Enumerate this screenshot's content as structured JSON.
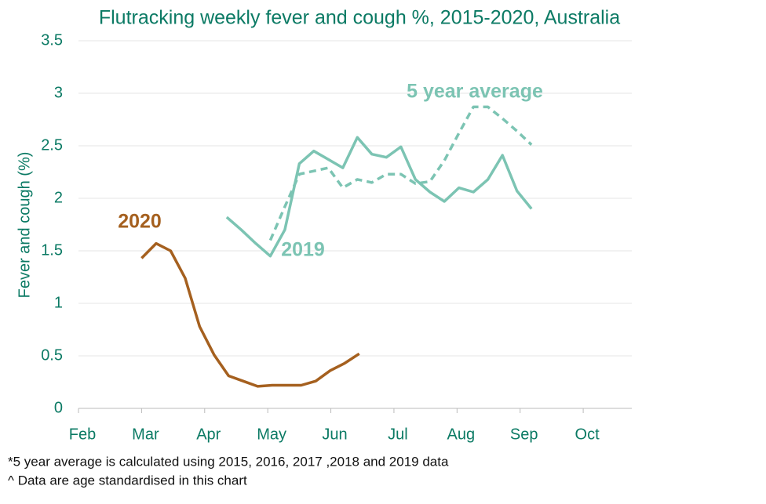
{
  "chart_data": {
    "type": "line",
    "title": "Flutracking weekly fever and cough %, 2015-2020, Australia",
    "y_label": "Fever and cough (%)",
    "xlim": [
      0,
      8.77
    ],
    "xticks": [
      {
        "value": 0,
        "label": "Feb"
      },
      {
        "value": 1,
        "label": "Mar"
      },
      {
        "value": 2,
        "label": "Apr"
      },
      {
        "value": 3,
        "label": "May"
      },
      {
        "value": 4,
        "label": "Jun"
      },
      {
        "value": 5,
        "label": "Jul"
      },
      {
        "value": 6,
        "label": "Aug"
      },
      {
        "value": 7,
        "label": "Sep"
      },
      {
        "value": 8,
        "label": "Oct"
      }
    ],
    "ylim": [
      0,
      3.5
    ],
    "yticks": [
      0,
      0.5,
      1,
      1.5,
      2,
      2.5,
      3,
      3.5
    ],
    "grid": true,
    "series": [
      {
        "name": "2020",
        "color": "#a5601f",
        "dash": false,
        "x": [
          1.0,
          1.23,
          1.46,
          1.69,
          1.92,
          2.15,
          2.38,
          2.61,
          2.84,
          3.07,
          3.3,
          3.53,
          3.76,
          3.99,
          4.22,
          4.45
        ],
        "values": [
          1.43,
          1.57,
          1.5,
          1.24,
          0.78,
          0.51,
          0.31,
          0.26,
          0.21,
          0.22,
          0.22,
          0.22,
          0.26,
          0.36,
          0.43,
          0.52
        ]
      },
      {
        "name": "2019",
        "color": "#7cc4b3",
        "dash": false,
        "x": [
          2.35,
          2.58,
          2.81,
          3.04,
          3.27,
          3.5,
          3.73,
          3.96,
          4.19,
          4.42,
          4.65,
          4.88,
          5.11,
          5.34,
          5.57,
          5.8,
          6.03,
          6.26,
          6.49,
          6.72,
          6.95,
          7.18
        ],
        "values": [
          1.82,
          1.7,
          1.57,
          1.45,
          1.7,
          2.33,
          2.45,
          2.37,
          2.29,
          2.58,
          2.42,
          2.39,
          2.49,
          2.18,
          2.06,
          1.97,
          2.1,
          2.06,
          2.18,
          2.41,
          2.07,
          1.9
        ]
      },
      {
        "name": "5 year average",
        "color": "#7cc4b3",
        "dash": true,
        "x": [
          3.04,
          3.27,
          3.5,
          3.73,
          3.96,
          4.19,
          4.42,
          4.65,
          4.88,
          5.11,
          5.34,
          5.57,
          5.8,
          6.03,
          6.26,
          6.49,
          6.72,
          6.95,
          7.18
        ],
        "values": [
          1.6,
          1.92,
          2.23,
          2.26,
          2.29,
          2.1,
          2.18,
          2.15,
          2.23,
          2.23,
          2.14,
          2.16,
          2.36,
          2.62,
          2.87,
          2.87,
          2.76,
          2.64,
          2.51
        ]
      }
    ],
    "footnotes": [
      "*5 year average is calculated using 2015, 2016, 2017 ,2018 and 2019 data",
      "^ Data are age standardised in this chart"
    ]
  }
}
